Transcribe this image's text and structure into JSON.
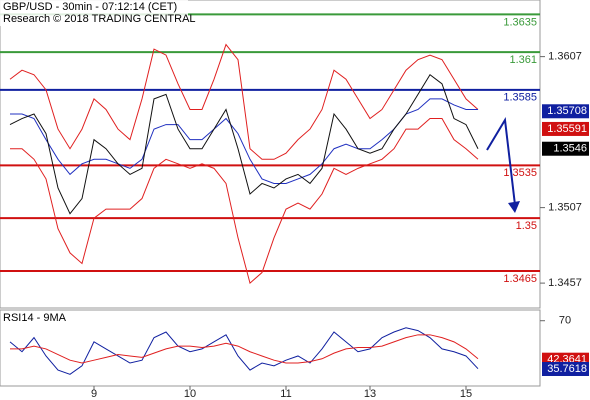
{
  "chart_data": [
    {
      "type": "line",
      "title": "GBP/USD - 30min - 07:12:14 (CET)",
      "subtitle": "Research © 2018 TRADING CENTRAL",
      "ylim": [
        1.34425,
        1.36445
      ],
      "yticks": [
        1.3607,
        1.3507,
        1.3457
      ],
      "series": [
        {
          "color": "#e02020",
          "values": [
            1.3592,
            1.3598,
            1.3595,
            1.3585,
            1.3559,
            1.3546,
            1.3559,
            1.3579,
            1.3572,
            1.3559,
            1.3552,
            1.3579,
            1.3612,
            1.3608,
            1.3589,
            1.3572,
            1.3572,
            1.3592,
            1.3615,
            1.3605,
            1.3546,
            1.3539,
            1.3539,
            1.3543,
            1.3552,
            1.3559,
            1.3572,
            1.3598,
            1.3592,
            1.3579,
            1.3566,
            1.3572,
            1.3585,
            1.3598,
            1.3605,
            1.3608,
            1.3605,
            1.3592,
            1.3579,
            1.3572
          ]
        },
        {
          "color": "#e02020",
          "values": [
            1.3546,
            1.3546,
            1.3539,
            1.3526,
            1.3493,
            1.3477,
            1.347,
            1.35,
            1.3506,
            1.3506,
            1.3506,
            1.3513,
            1.3533,
            1.3539,
            1.3536,
            1.3533,
            1.3536,
            1.3533,
            1.3523,
            1.3487,
            1.3457,
            1.3464,
            1.3487,
            1.3506,
            1.351,
            1.3506,
            1.3516,
            1.3533,
            1.3529,
            1.3533,
            1.3536,
            1.3539,
            1.3546,
            1.3559,
            1.3559,
            1.3566,
            1.3566,
            1.3552,
            1.3546,
            1.3539
          ]
        },
        {
          "color": "#2030c0",
          "values": [
            1.3569,
            1.3569,
            1.3566,
            1.3552,
            1.3539,
            1.3529,
            1.3536,
            1.3539,
            1.3539,
            1.3536,
            1.3533,
            1.3539,
            1.3559,
            1.3562,
            1.3562,
            1.3552,
            1.3552,
            1.3559,
            1.3566,
            1.3556,
            1.3539,
            1.3526,
            1.3523,
            1.3523,
            1.3526,
            1.3529,
            1.3536,
            1.3546,
            1.3549,
            1.3546,
            1.3546,
            1.3552,
            1.3559,
            1.3569,
            1.3572,
            1.3579,
            1.3579,
            1.3575,
            1.3572,
            1.3572
          ]
        },
        {
          "color": "#111111",
          "values": [
            1.3562,
            1.3566,
            1.3569,
            1.3556,
            1.352,
            1.3503,
            1.3513,
            1.3552,
            1.3546,
            1.3536,
            1.3529,
            1.3533,
            1.3579,
            1.3582,
            1.3559,
            1.3546,
            1.3546,
            1.3559,
            1.3572,
            1.3546,
            1.3516,
            1.3523,
            1.352,
            1.3526,
            1.3529,
            1.3523,
            1.3533,
            1.3569,
            1.3559,
            1.3546,
            1.3543,
            1.3546,
            1.3559,
            1.3569,
            1.3582,
            1.3595,
            1.3589,
            1.3566,
            1.3562,
            1.3546
          ]
        }
      ],
      "levels": [
        {
          "value": 1.3635,
          "color": "#3a9a3a"
        },
        {
          "value": 1.361,
          "color": "#3a9a3a"
        },
        {
          "value": 1.3585,
          "color": "#1020a0"
        },
        {
          "value": 1.3535,
          "color": "#d01010"
        },
        {
          "value": 1.35,
          "color": "#d01010"
        },
        {
          "value": 1.3465,
          "color": "#d01010"
        }
      ],
      "tags": [
        {
          "value": 1.35708,
          "color": "#1020a0"
        },
        {
          "value": 1.35591,
          "color": "#d01010"
        },
        {
          "value": 1.3546,
          "color": "#000000"
        }
      ]
    },
    {
      "type": "line",
      "title": "RSI14 - 9MA",
      "categories": [
        null,
        null,
        null,
        null,
        null,
        null,
        null,
        "9",
        null,
        null,
        null,
        null,
        null,
        null,
        null,
        "10",
        null,
        null,
        null,
        null,
        null,
        null,
        null,
        "11",
        null,
        null,
        null,
        null,
        null,
        null,
        "13",
        null,
        null,
        null,
        null,
        null,
        null,
        null,
        "15",
        null
      ],
      "ylim": [
        23.7,
        77.6
      ],
      "yticks": [
        70
      ],
      "series": [
        {
          "color": "#1020a0",
          "values": [
            55,
            48,
            58,
            45,
            35,
            32,
            38,
            55,
            50,
            45,
            40,
            42,
            58,
            62,
            52,
            48,
            50,
            55,
            60,
            45,
            35,
            40,
            38,
            42,
            45,
            40,
            50,
            62,
            55,
            48,
            50,
            58,
            62,
            65,
            63,
            58,
            50,
            48,
            45,
            36
          ]
        },
        {
          "color": "#e02020",
          "values": [
            50,
            50,
            52,
            50,
            46,
            42,
            40,
            42,
            44,
            46,
            45,
            44,
            47,
            50,
            52,
            52,
            51,
            52,
            54,
            52,
            48,
            45,
            42,
            40,
            40,
            41,
            43,
            47,
            50,
            51,
            51,
            52,
            55,
            58,
            60,
            60,
            58,
            55,
            50,
            43
          ]
        }
      ],
      "tags": [
        {
          "value": 42.3641,
          "color": "#d01010"
        },
        {
          "value": 35.7618,
          "color": "#1020a0"
        }
      ]
    }
  ]
}
